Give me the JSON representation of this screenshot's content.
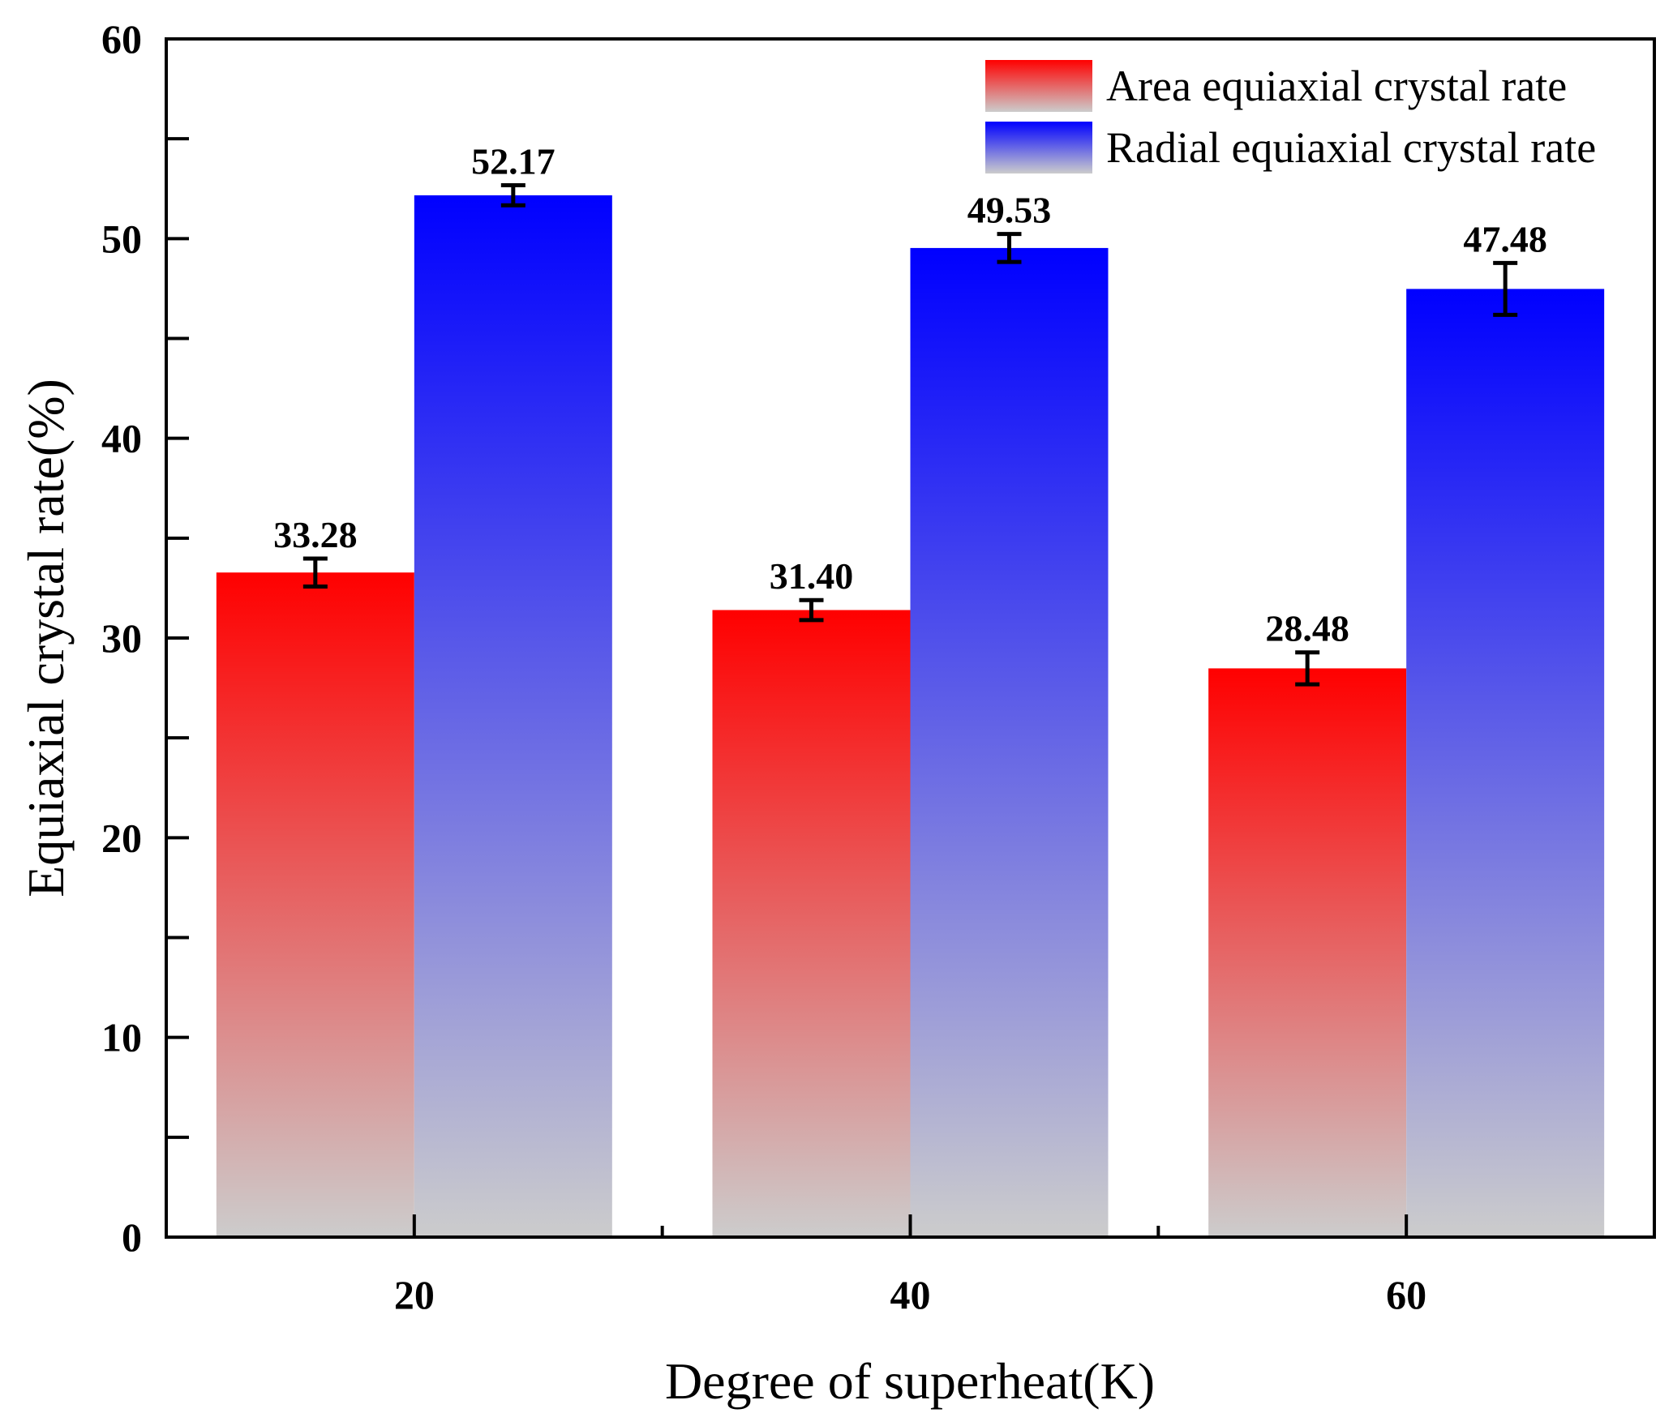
{
  "chart_data": {
    "type": "bar",
    "title": "",
    "xlabel": "Degree of superheat(K)",
    "ylabel": "Equiaxial crystal rate(%)",
    "categories": [
      "20",
      "40",
      "60"
    ],
    "ylim": [
      0,
      60
    ],
    "yticks": [
      "0",
      "10",
      "20",
      "30",
      "40",
      "50",
      "60"
    ],
    "grid": false,
    "legend_position": "top-right",
    "series": [
      {
        "name": "Area equiaxial crystal rate",
        "values": [
          33.28,
          31.4,
          28.48
        ],
        "labels": [
          "33.28",
          "31.40",
          "28.48"
        ],
        "errors": [
          0.7,
          0.5,
          0.8
        ],
        "color_top": "#ff0000",
        "color_bottom": "#cccccc"
      },
      {
        "name": "Radial equiaxial crystal rate",
        "values": [
          52.17,
          49.53,
          47.48
        ],
        "labels": [
          "52.17",
          "49.53",
          "47.48"
        ],
        "errors": [
          0.5,
          0.7,
          1.3
        ],
        "color_top": "#0000ff",
        "color_bottom": "#cccccc"
      }
    ]
  }
}
